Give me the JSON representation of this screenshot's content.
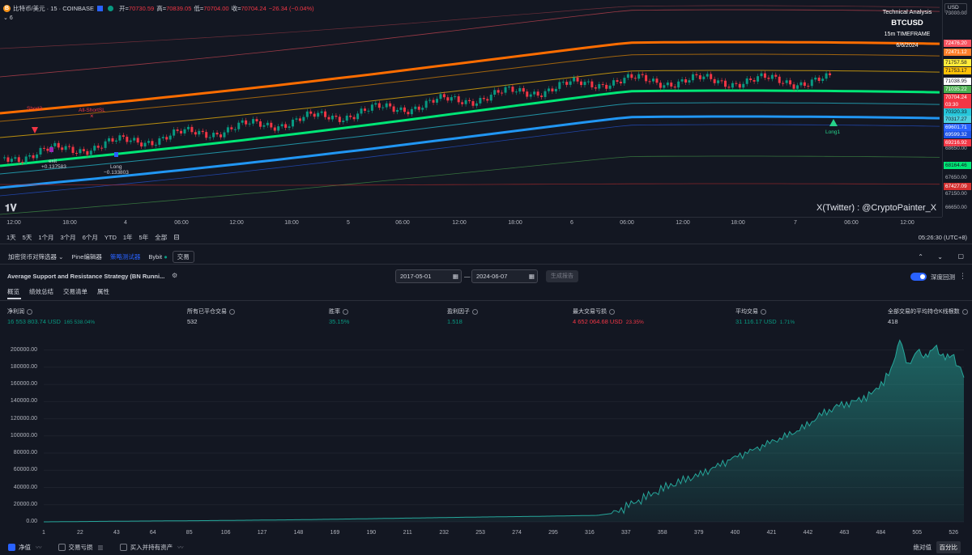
{
  "header": {
    "coin_icon": "B",
    "symbol_title": "比特币/美元 · 15 · COINBASE",
    "open_label": "开=",
    "open": "70730.59",
    "high_label": "高=",
    "high": "70839.05",
    "low_label": "低=",
    "low": "70704.00",
    "close_label": "收=",
    "close": "70704.24",
    "change": "−26.34 (−0.04%)",
    "indicator_count": "6",
    "currency": "USD"
  },
  "overlay": {
    "line1": "Technical Analysis",
    "line2": "BTCUSD",
    "line3": "15m TIMEFRAME",
    "line4": "6/6/2024",
    "watermark": "X(Twitter) : @CryptoPainter_X"
  },
  "trade_labels": {
    "short": "Short3",
    "all_short": "All-ShortSL",
    "exit": "exit",
    "exit_val": "+0.137583",
    "long": "Long",
    "long_val": "−0.133803",
    "long1": "Long1"
  },
  "price_axis": [
    {
      "text": "73000.00",
      "bg": "",
      "color": "#b2b5be"
    },
    {
      "text": "72476.20",
      "bg": "#f7525f",
      "color": "#ffffff"
    },
    {
      "text": "72471.12",
      "bg": "#ff7f2a",
      "color": "#ffffff"
    },
    {
      "text": "71757.58",
      "bg": "#ffeb3b",
      "color": "#131722"
    },
    {
      "text": "71753.17",
      "bg": "#ffc107",
      "color": "#131722"
    },
    {
      "text": "71038.95",
      "bg": "#ffffff",
      "color": "#131722"
    },
    {
      "text": "71035.22",
      "bg": "#4caf50",
      "color": "#ffffff"
    },
    {
      "text": "70704.24",
      "bg": "#f23645",
      "color": "#ffffff"
    },
    {
      "text": "03:30",
      "bg": "#f23645",
      "color": "#ffffff"
    },
    {
      "text": "70320.33",
      "bg": "#26c6da",
      "color": "#131722"
    },
    {
      "text": "70317.27",
      "bg": "#4dd0e1",
      "color": "#131722"
    },
    {
      "text": "69601.71",
      "bg": "#2962ff",
      "color": "#ffffff"
    },
    {
      "text": "69599.32",
      "bg": "#1e53e5",
      "color": "#ffffff"
    },
    {
      "text": "69216.92",
      "bg": "#f23645",
      "color": "#ffffff"
    },
    {
      "text": "68650.00",
      "bg": "",
      "color": "#b2b5be"
    },
    {
      "text": "68164.46",
      "bg": "#00e676",
      "color": "#131722"
    },
    {
      "text": "67650.00",
      "bg": "",
      "color": "#b2b5be"
    },
    {
      "text": "67427.09",
      "bg": "#d32f2f",
      "color": "#ffffff"
    },
    {
      "text": "67150.00",
      "bg": "",
      "color": "#b2b5be"
    },
    {
      "text": "66650.00",
      "bg": "",
      "color": "#b2b5be"
    }
  ],
  "time_axis": [
    "12:00",
    "18:00",
    "4",
    "06:00",
    "12:00",
    "18:00",
    "5",
    "06:00",
    "12:00",
    "18:00",
    "6",
    "06:00",
    "12:00",
    "18:00",
    "7",
    "06:00",
    "12:00"
  ],
  "range_buttons": [
    "1天",
    "5天",
    "1个月",
    "3个月",
    "6个月",
    "YTD",
    "1年",
    "5年",
    "全部"
  ],
  "utc": "05:26:30 (UTC+8)",
  "panel_tabs": [
    "加密货币对筛选器",
    "Pine编辑器",
    "策略测试器",
    "Bybit",
    "交易"
  ],
  "strategy": {
    "title": "Average Support and Resistance Strategy (BN Runni...",
    "date_from": "2017-05-01",
    "date_to": "2024-06-07",
    "dash": "—",
    "generate": "生成报告",
    "deep_backtest": "深度回测",
    "sub_tabs": [
      "概览",
      "绩效总结",
      "交易清单",
      "属性"
    ]
  },
  "stats": [
    {
      "label": "净利润",
      "value": "16 553 803.74 USD",
      "sub": "165 538.04%",
      "cls": "pos"
    },
    {
      "label": "所有已平仓交易",
      "value": "532",
      "sub": "",
      "cls": "neu"
    },
    {
      "label": "胜率",
      "value": "35.15%",
      "sub": "",
      "cls": "pos"
    },
    {
      "label": "盈利因子",
      "value": "1.518",
      "sub": "",
      "cls": "pos"
    },
    {
      "label": "最大交易亏损",
      "value": "4 652 064.68 USD",
      "sub": "23.35%",
      "cls": "neg"
    },
    {
      "label": "平均交易",
      "value": "31 116.17 USD",
      "sub": "1.71%",
      "cls": "pos"
    },
    {
      "label": "全部交易的平均持仓K线根数",
      "value": "418",
      "sub": "",
      "cls": "neu"
    }
  ],
  "chart_data": {
    "type": "area",
    "ylim": [
      0,
      210000
    ],
    "yticks": [
      "200000.00",
      "180000.00",
      "160000.00",
      "140000.00",
      "120000.00",
      "100000.00",
      "80000.00",
      "60000.00",
      "40000.00",
      "20000.00",
      "0.00"
    ],
    "xticks": [
      "1",
      "22",
      "43",
      "64",
      "85",
      "106",
      "127",
      "148",
      "169",
      "190",
      "211",
      "232",
      "253",
      "274",
      "295",
      "316",
      "337",
      "358",
      "379",
      "400",
      "421",
      "442",
      "463",
      "484",
      "505",
      "526"
    ],
    "x": [
      1,
      50,
      100,
      150,
      200,
      250,
      290,
      320,
      330,
      340,
      350,
      360,
      370,
      380,
      390,
      400,
      410,
      420,
      430,
      440,
      450,
      460,
      470,
      480,
      490,
      495,
      500,
      505,
      510,
      515,
      520,
      525,
      530,
      532
    ],
    "values": [
      0,
      800,
      1500,
      2500,
      4000,
      5500,
      6500,
      7500,
      10000,
      20000,
      30000,
      40000,
      48000,
      55000,
      65000,
      75000,
      83000,
      92000,
      100000,
      110000,
      125000,
      135000,
      140000,
      150000,
      175000,
      212000,
      180000,
      200000,
      190000,
      205000,
      190000,
      195000,
      175000,
      168000
    ],
    "series_color": "#26a69a"
  },
  "legend": {
    "equity": "净值",
    "drawdown": "交易亏损",
    "buy_hold": "买入并持有资产",
    "absolute": "绝对值",
    "percent": "百分比"
  }
}
